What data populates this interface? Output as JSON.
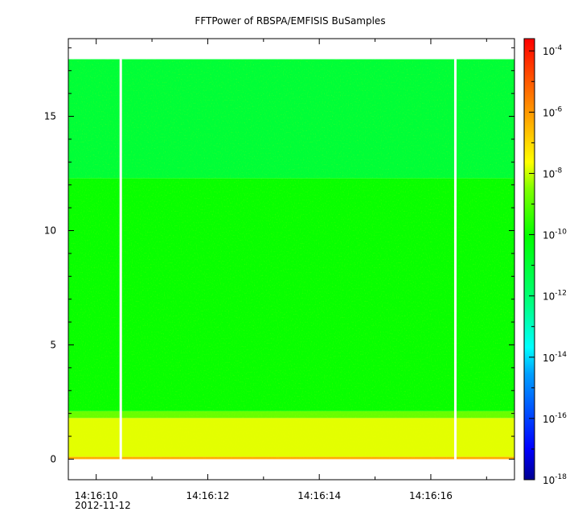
{
  "chart_data": {
    "type": "heatmap",
    "title": "FFTPower of RBSPA/EMFISIS  BuSamples",
    "xlabel": "",
    "ylabel": "",
    "x_date_label": "2012-11-12",
    "x_ticks": [
      "14:16:10",
      "14:16:12",
      "14:16:14",
      "14:16:16"
    ],
    "x_range_seconds": [
      9.5,
      17.5
    ],
    "y_ticks": [
      0,
      5,
      10,
      15
    ],
    "ylim": [
      -0.9,
      18.4
    ],
    "colorbar": {
      "scale": "log",
      "range_exponent": [
        -18,
        -3.6
      ],
      "tick_base": "10",
      "tick_exponents": [
        "-18",
        "-16",
        "-14",
        "-12",
        "-10",
        "-8",
        "-6",
        "-4"
      ],
      "colors": [
        "#000090",
        "#0000ff",
        "#00ffff",
        "#00ff80",
        "#00ff00",
        "#ffff00",
        "#ff8000",
        "#ff0000"
      ]
    },
    "gaps_seconds": [
      10.44,
      16.44
    ],
    "bands": [
      {
        "y_range": [
          0,
          0.1
        ],
        "log_power": -6.3
      },
      {
        "y_range": [
          0.1,
          1.8
        ],
        "log_power": -7.8
      },
      {
        "y_range": [
          1.8,
          2.1
        ],
        "log_power": -8.8
      },
      {
        "y_range": [
          2.1,
          12.3
        ],
        "log_power": -10.0
      },
      {
        "y_range": [
          12.3,
          17.5
        ],
        "log_power": -11.0
      }
    ]
  }
}
